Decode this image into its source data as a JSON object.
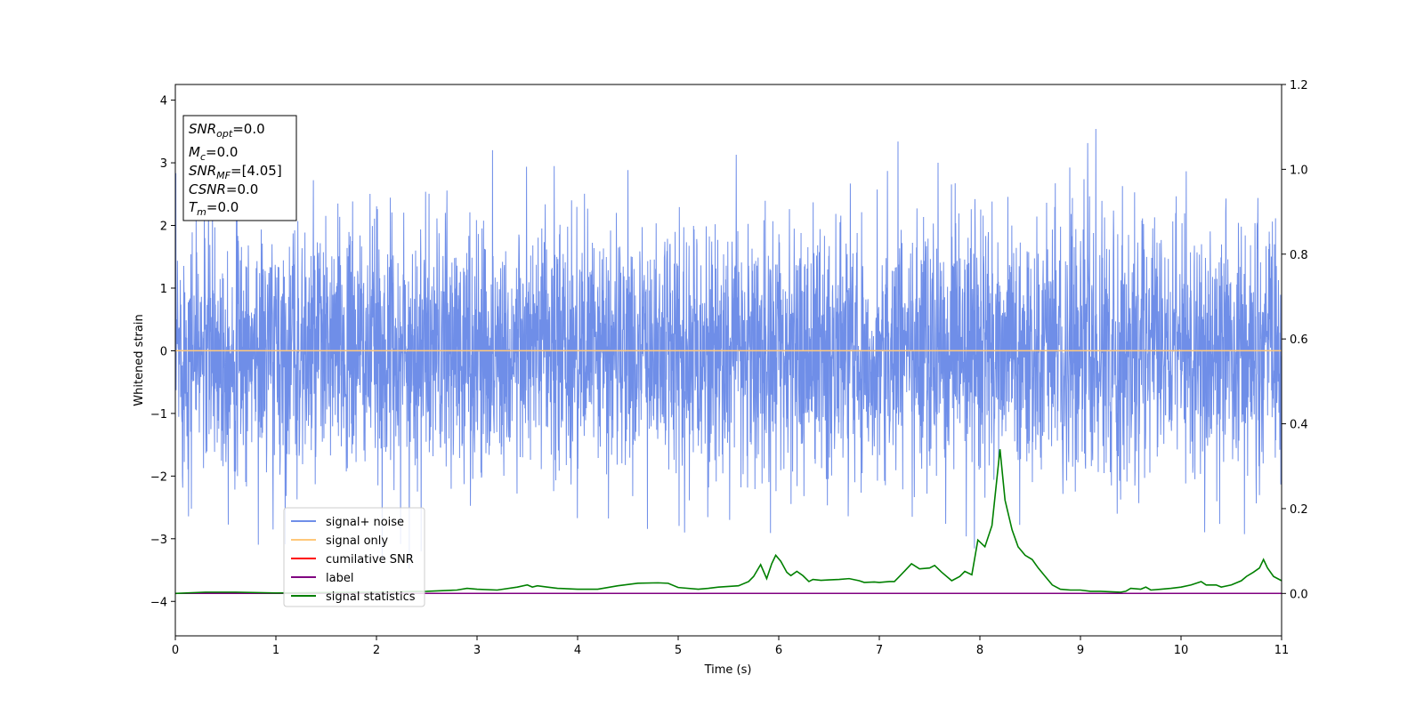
{
  "chart_data": {
    "type": "line",
    "xlabel": "Time (s)",
    "ylabel": "Whitened strain",
    "xlim": [
      0,
      11
    ],
    "ylim_left": [
      -4.55,
      4.25
    ],
    "ylim_right": [
      -0.1,
      1.2
    ],
    "x_ticks": [
      "0",
      "1",
      "2",
      "3",
      "4",
      "5",
      "6",
      "7",
      "8",
      "9",
      "10",
      "11"
    ],
    "y_ticks_left": [
      "−4",
      "−3",
      "−2",
      "−1",
      "0",
      "1",
      "2",
      "3",
      "4"
    ],
    "y_ticks_right": [
      "0.0",
      "0.2",
      "0.4",
      "0.6",
      "0.8",
      "1.0",
      "1.2"
    ],
    "grid": false,
    "legend_position": "lower-left",
    "info_box": {
      "lines": [
        {
          "base": "SNR",
          "sub": "opt",
          "rest": "=0.0"
        },
        {
          "base": "M",
          "sub": "c",
          "rest": "=0.0"
        },
        {
          "base": "SNR",
          "sub": "MF",
          "rest": "=[4.05]"
        },
        {
          "base": "CSNR",
          "sub": "",
          "rest": "=0.0"
        },
        {
          "base": "T",
          "sub": "m",
          "rest": "=0.0"
        }
      ]
    },
    "series": [
      {
        "name": "signal+ noise",
        "color": "#6f8ee8",
        "axis": "left",
        "kind": "noise",
        "amplitude": 1.0
      },
      {
        "name": "signal only",
        "color": "#ffc87a",
        "axis": "left",
        "x": [
          0,
          11
        ],
        "y": [
          0,
          0
        ]
      },
      {
        "name": "cumilative SNR",
        "color": "#ff0000",
        "axis": "right",
        "x": [],
        "y": []
      },
      {
        "name": "label",
        "color": "#800080",
        "axis": "right",
        "x": [
          0,
          11
        ],
        "y": [
          0,
          0
        ]
      },
      {
        "name": "signal statistics",
        "color": "#008000",
        "axis": "right",
        "x": [
          0,
          0.3,
          0.6,
          1.0,
          1.5,
          2.0,
          2.5,
          2.8,
          2.9,
          3.0,
          3.2,
          3.4,
          3.5,
          3.55,
          3.6,
          3.7,
          3.8,
          4.0,
          4.2,
          4.4,
          4.6,
          4.8,
          4.9,
          5.0,
          5.2,
          5.3,
          5.4,
          5.6,
          5.7,
          5.75,
          5.82,
          5.88,
          5.93,
          5.97,
          6.02,
          6.08,
          6.12,
          6.18,
          6.24,
          6.3,
          6.34,
          6.42,
          6.5,
          6.6,
          6.7,
          6.8,
          6.85,
          6.95,
          7.0,
          7.1,
          7.15,
          7.2,
          7.32,
          7.4,
          7.5,
          7.55,
          7.62,
          7.72,
          7.8,
          7.85,
          7.92,
          7.98,
          8.05,
          8.12,
          8.2,
          8.25,
          8.32,
          8.38,
          8.45,
          8.52,
          8.58,
          8.65,
          8.72,
          8.8,
          8.9,
          9.0,
          9.1,
          9.2,
          9.3,
          9.4,
          9.45,
          9.5,
          9.6,
          9.65,
          9.7,
          9.8,
          9.9,
          10.0,
          10.1,
          10.2,
          10.25,
          10.35,
          10.4,
          10.5,
          10.6,
          10.65,
          10.72,
          10.78,
          10.82,
          10.86,
          10.92,
          11.0
        ],
        "y": [
          0.0,
          0.003,
          0.003,
          0.001,
          0.002,
          0.003,
          0.005,
          0.008,
          0.012,
          0.01,
          0.008,
          0.015,
          0.02,
          0.015,
          0.018,
          0.015,
          0.012,
          0.01,
          0.01,
          0.018,
          0.024,
          0.025,
          0.024,
          0.014,
          0.01,
          0.012,
          0.015,
          0.018,
          0.028,
          0.04,
          0.068,
          0.035,
          0.07,
          0.09,
          0.076,
          0.05,
          0.042,
          0.052,
          0.042,
          0.028,
          0.033,
          0.031,
          0.032,
          0.033,
          0.035,
          0.03,
          0.026,
          0.027,
          0.026,
          0.028,
          0.028,
          0.04,
          0.07,
          0.058,
          0.06,
          0.066,
          0.05,
          0.03,
          0.04,
          0.052,
          0.044,
          0.126,
          0.11,
          0.16,
          0.34,
          0.22,
          0.15,
          0.11,
          0.09,
          0.08,
          0.06,
          0.04,
          0.02,
          0.01,
          0.008,
          0.008,
          0.005,
          0.005,
          0.004,
          0.003,
          0.005,
          0.012,
          0.01,
          0.015,
          0.008,
          0.01,
          0.012,
          0.015,
          0.02,
          0.028,
          0.02,
          0.02,
          0.015,
          0.02,
          0.03,
          0.04,
          0.05,
          0.06,
          0.08,
          0.06,
          0.04,
          0.03
        ]
      }
    ]
  }
}
